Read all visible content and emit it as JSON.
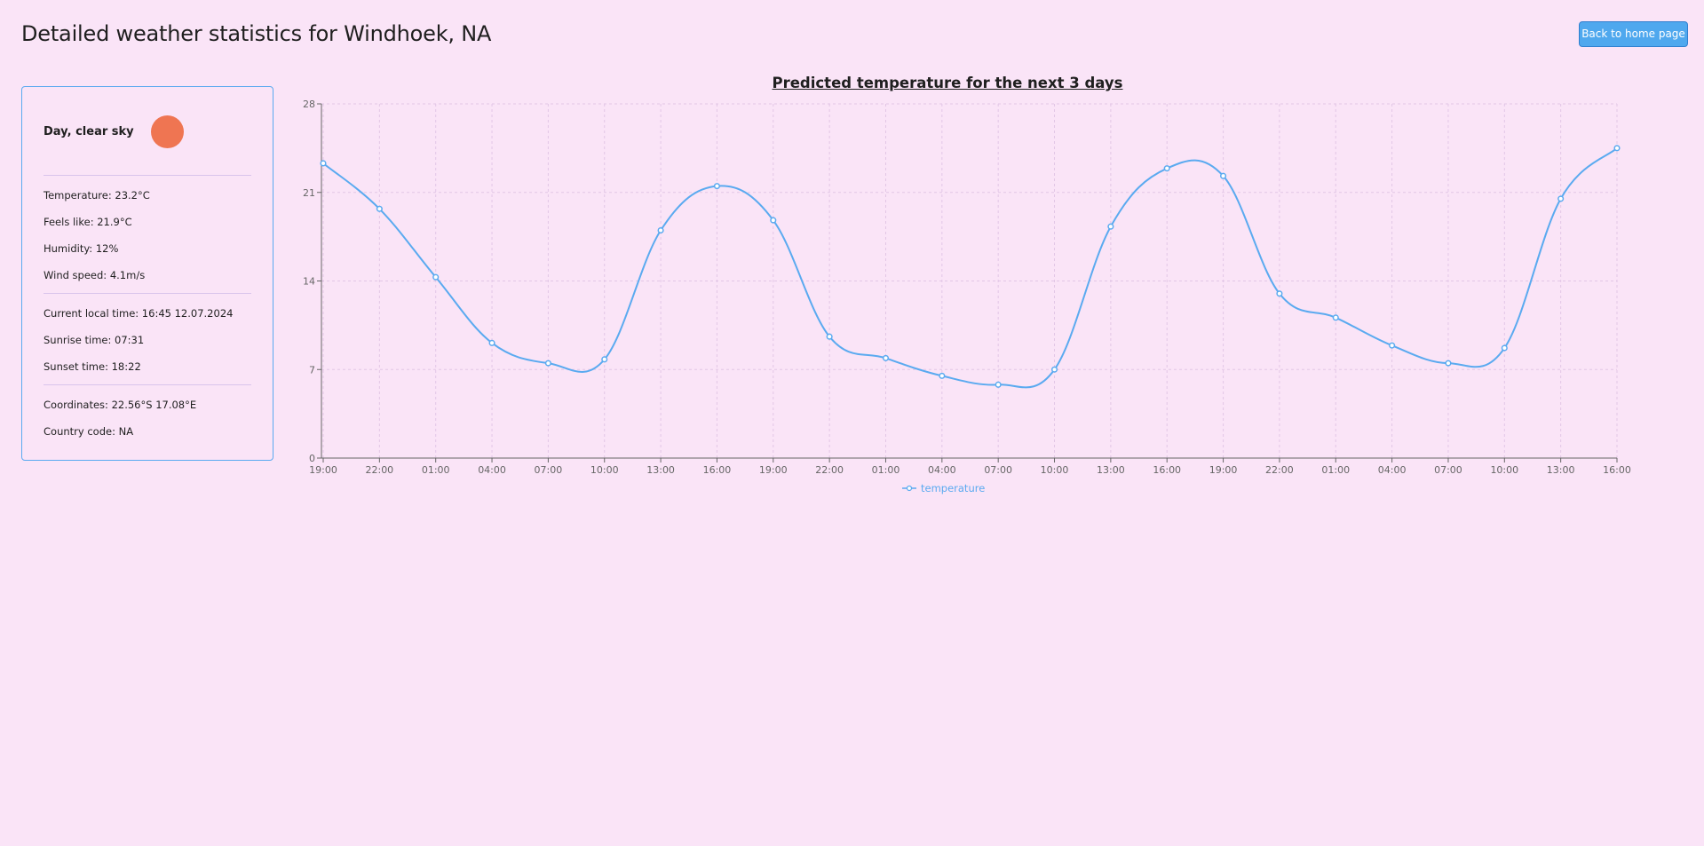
{
  "header": {
    "title": "Detailed weather statistics for Windhoek, NA",
    "home_button_label": "Back to home page"
  },
  "current": {
    "description": "Day, clear sky",
    "icon": "sun-icon",
    "temperature": "Temperature: 23.2°C",
    "feels_like": "Feels like: 21.9°C",
    "humidity": "Humidity: 12%",
    "wind_speed": "Wind speed: 4.1m/s",
    "local_time": "Current local time: 16:45 12.07.2024",
    "sunrise": "Sunrise time: 07:31",
    "sunset": "Sunset time: 18:22",
    "coordinates": "Coordinates: 22.56°S 17.08°E",
    "country_code": "Country code: NA"
  },
  "colors": {
    "background": "#fae4f7",
    "accent": "#4fa8ee",
    "line": "#5aaaf0",
    "sun": "#ef7552"
  },
  "chart_data": {
    "type": "line",
    "title": "Predicted temperature for the next 3 days",
    "xlabel": "",
    "ylabel": "",
    "categories": [
      "19:00",
      "22:00",
      "01:00",
      "04:00",
      "07:00",
      "10:00",
      "13:00",
      "16:00",
      "19:00",
      "22:00",
      "01:00",
      "04:00",
      "07:00",
      "10:00",
      "13:00",
      "16:00",
      "19:00",
      "22:00",
      "01:00",
      "04:00",
      "07:00",
      "10:00",
      "13:00",
      "16:00"
    ],
    "series": [
      {
        "name": "temperature",
        "values": [
          23.3,
          19.7,
          14.3,
          9.1,
          7.5,
          7.8,
          18.0,
          21.5,
          18.8,
          9.6,
          7.9,
          6.5,
          5.8,
          7.0,
          18.3,
          22.9,
          22.3,
          13.0,
          11.1,
          8.9,
          7.5,
          8.7,
          20.5,
          24.5
        ]
      }
    ],
    "yticks": [
      0,
      7,
      14,
      21,
      28
    ],
    "ylim": [
      0,
      28
    ],
    "grid": true,
    "legend": "bottom-center"
  }
}
